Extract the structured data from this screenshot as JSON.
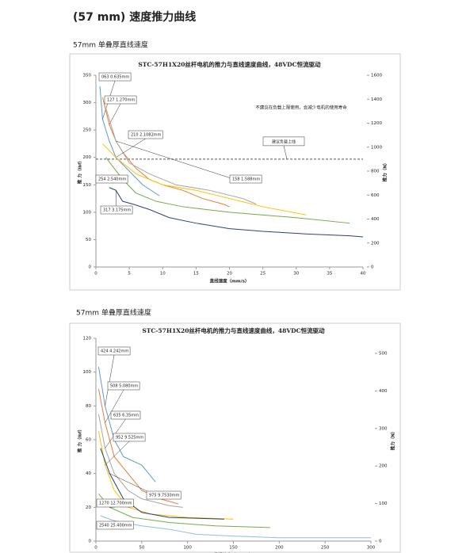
{
  "title": "(57 mm) 速度推力曲线",
  "chart_data": [
    {
      "type": "line",
      "section": "57mm 单叠厚直线速度",
      "title": "STC-57H1X20丝杆电机的推力与直线速度曲线，48VDC恒流驱动",
      "x_label": "直线速度（mm/s）",
      "y_label": "推 力（lbf）",
      "y2_label": "推力（N）",
      "xlim": [
        0,
        40
      ],
      "xticks": [
        0,
        5,
        10,
        15,
        20,
        25,
        30,
        35,
        40
      ],
      "ylim": [
        0,
        350
      ],
      "yticks": [
        0,
        50,
        100,
        150,
        200,
        250,
        300,
        350
      ],
      "y2lim": [
        0,
        1600
      ],
      "y2ticks": [
        0,
        200,
        400,
        600,
        800,
        1000,
        1200,
        1400,
        1600
      ],
      "note": "不建议在负载上限使用，会减少电机的使用寿命",
      "limit_label": "建议负载上线",
      "limit_line": 900,
      "series": [
        {
          "name": "063 0.635mm",
          "color": "#5b9bd5",
          "x": [
            0.6,
            1,
            2,
            3,
            5,
            7,
            9.5
          ],
          "values": [
            330,
            270,
            230,
            200,
            175,
            150,
            130
          ]
        },
        {
          "name": "127 1.270mm",
          "color": "#ed7d31",
          "x": [
            1,
            2,
            3,
            4,
            6,
            8,
            10,
            13,
            16,
            19,
            20
          ],
          "values": [
            310,
            260,
            230,
            210,
            180,
            160,
            150,
            140,
            125,
            115,
            110
          ]
        },
        {
          "name": "158 1.588mm",
          "color": "#a5a5a5",
          "x": [
            1.5,
            3,
            5,
            8,
            12,
            17,
            22,
            24
          ],
          "values": [
            290,
            230,
            190,
            170,
            150,
            140,
            125,
            115
          ]
        },
        {
          "name": "210 2.1082mm",
          "color": "#ffc000",
          "x": [
            1,
            3,
            6,
            10,
            15,
            20,
            25,
            31.5
          ],
          "values": [
            225,
            200,
            170,
            150,
            140,
            125,
            110,
            95
          ]
        },
        {
          "name": "254 2.540mm",
          "color": "#70ad47",
          "x": [
            1.5,
            4,
            6,
            9,
            13,
            20,
            25,
            30,
            38
          ],
          "values": [
            200,
            160,
            135,
            120,
            110,
            100,
            95,
            90,
            80
          ]
        },
        {
          "name": "317 3.175mm",
          "color": "#264478",
          "x": [
            2,
            3,
            4,
            5.5,
            8,
            11,
            15,
            20,
            25,
            32,
            38,
            40
          ],
          "values": [
            145,
            140,
            120,
            115,
            105,
            90,
            80,
            70,
            65,
            60,
            57,
            55
          ]
        }
      ]
    },
    {
      "type": "line",
      "section": "57mm 单叠厚直线速度",
      "title": "STC-57H1X20丝杆电机的推力与直线速度曲线，48VDC恒流驱动",
      "x_label": "直线速度（mm/s）",
      "y_label": "推 力（lbf）",
      "y2_label": "推力（N）",
      "xlim": [
        0,
        300
      ],
      "xticks": [
        0,
        50,
        100,
        150,
        200,
        250,
        300
      ],
      "ylim": [
        0,
        120
      ],
      "yticks": [
        0,
        20,
        40,
        60,
        80,
        100,
        120
      ],
      "y2lim": [
        0,
        540
      ],
      "y2ticks": [
        0,
        100,
        200,
        300,
        400,
        500
      ],
      "series": [
        {
          "name": "424 4.242mm",
          "color": "#5b9bd5",
          "x": [
            3,
            10,
            20,
            30,
            50,
            65
          ],
          "values": [
            103,
            80,
            60,
            50,
            45,
            35
          ]
        },
        {
          "name": "508 5.080mm",
          "color": "#ed7d31",
          "x": [
            3,
            10,
            20,
            35,
            50,
            70,
            90
          ],
          "values": [
            90,
            70,
            50,
            40,
            30,
            25,
            22
          ]
        },
        {
          "name": "635 6.35mm",
          "color": "#a5a5a5",
          "x": [
            3,
            10,
            20,
            35,
            50,
            80,
            95
          ],
          "values": [
            75,
            55,
            40,
            30,
            25,
            21,
            20
          ]
        },
        {
          "name": "952 9.525mm",
          "color": "#ffc000",
          "x": [
            3,
            10,
            20,
            35,
            60,
            100,
            150
          ],
          "values": [
            65,
            45,
            30,
            20,
            16,
            14,
            13
          ]
        },
        {
          "name": "975 9.7530mm",
          "color": "#264478",
          "x": [
            5,
            15,
            30,
            50,
            80,
            140
          ],
          "values": [
            55,
            40,
            25,
            17,
            14,
            13
          ]
        },
        {
          "name": "1270 12.700mm",
          "color": "#70ad47",
          "x": [
            3,
            15,
            40,
            80,
            130,
            190
          ],
          "values": [
            28,
            20,
            14,
            11,
            9,
            8
          ]
        },
        {
          "name": "2540 25.400mm",
          "color": "#8fbce6",
          "x": [
            5,
            20,
            50,
            80,
            110,
            150,
            200,
            300
          ],
          "values": [
            15,
            12,
            9,
            7,
            4,
            3,
            2,
            2
          ]
        }
      ]
    }
  ]
}
